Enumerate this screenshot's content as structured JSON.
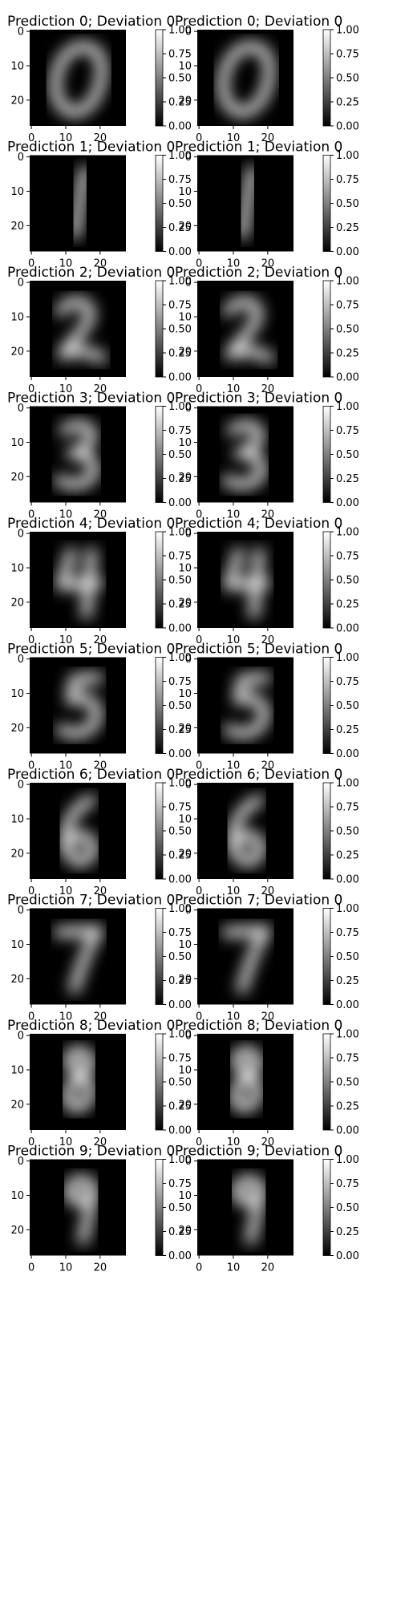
{
  "chart_data": {
    "type": "heatmap",
    "colormap": "gray",
    "panel_columns": 2,
    "image_extent": [
      0,
      27
    ],
    "axis_ticks": [
      0,
      10,
      20
    ],
    "colorbar": {
      "range": [
        0.0,
        1.0
      ],
      "ticks": [
        "1.00",
        "0.75",
        "0.50",
        "0.25",
        "0.00"
      ]
    },
    "panels": [
      {
        "title": "Prediction 0; Deviation 0",
        "digit": "0"
      },
      {
        "title": "Prediction 0; Deviation 0",
        "digit": "0"
      },
      {
        "title": "Prediction 1; Deviation 0",
        "digit": "1"
      },
      {
        "title": "Prediction 1; Deviation 0",
        "digit": "1"
      },
      {
        "title": "Prediction 2; Deviation 0",
        "digit": "2"
      },
      {
        "title": "Prediction 2; Deviation 0",
        "digit": "2"
      },
      {
        "title": "Prediction 3; Deviation 0",
        "digit": "3"
      },
      {
        "title": "Prediction 3; Deviation 0",
        "digit": "3"
      },
      {
        "title": "Prediction 4; Deviation 0",
        "digit": "4"
      },
      {
        "title": "Prediction 4; Deviation 0",
        "digit": "4"
      },
      {
        "title": "Prediction 5; Deviation 0",
        "digit": "5"
      },
      {
        "title": "Prediction 5; Deviation 0",
        "digit": "5"
      },
      {
        "title": "Prediction 6; Deviation 0",
        "digit": "6"
      },
      {
        "title": "Prediction 6; Deviation 0",
        "digit": "6"
      },
      {
        "title": "Prediction 7; Deviation 0",
        "digit": "7"
      },
      {
        "title": "Prediction 7; Deviation 0",
        "digit": "7"
      },
      {
        "title": "Prediction 8; Deviation 0",
        "digit": "8"
      },
      {
        "title": "Prediction 8; Deviation 0",
        "digit": "8"
      },
      {
        "title": "Prediction 9; Deviation 0",
        "digit": "9"
      },
      {
        "title": "Prediction 9; Deviation 0",
        "digit": "9"
      }
    ]
  }
}
